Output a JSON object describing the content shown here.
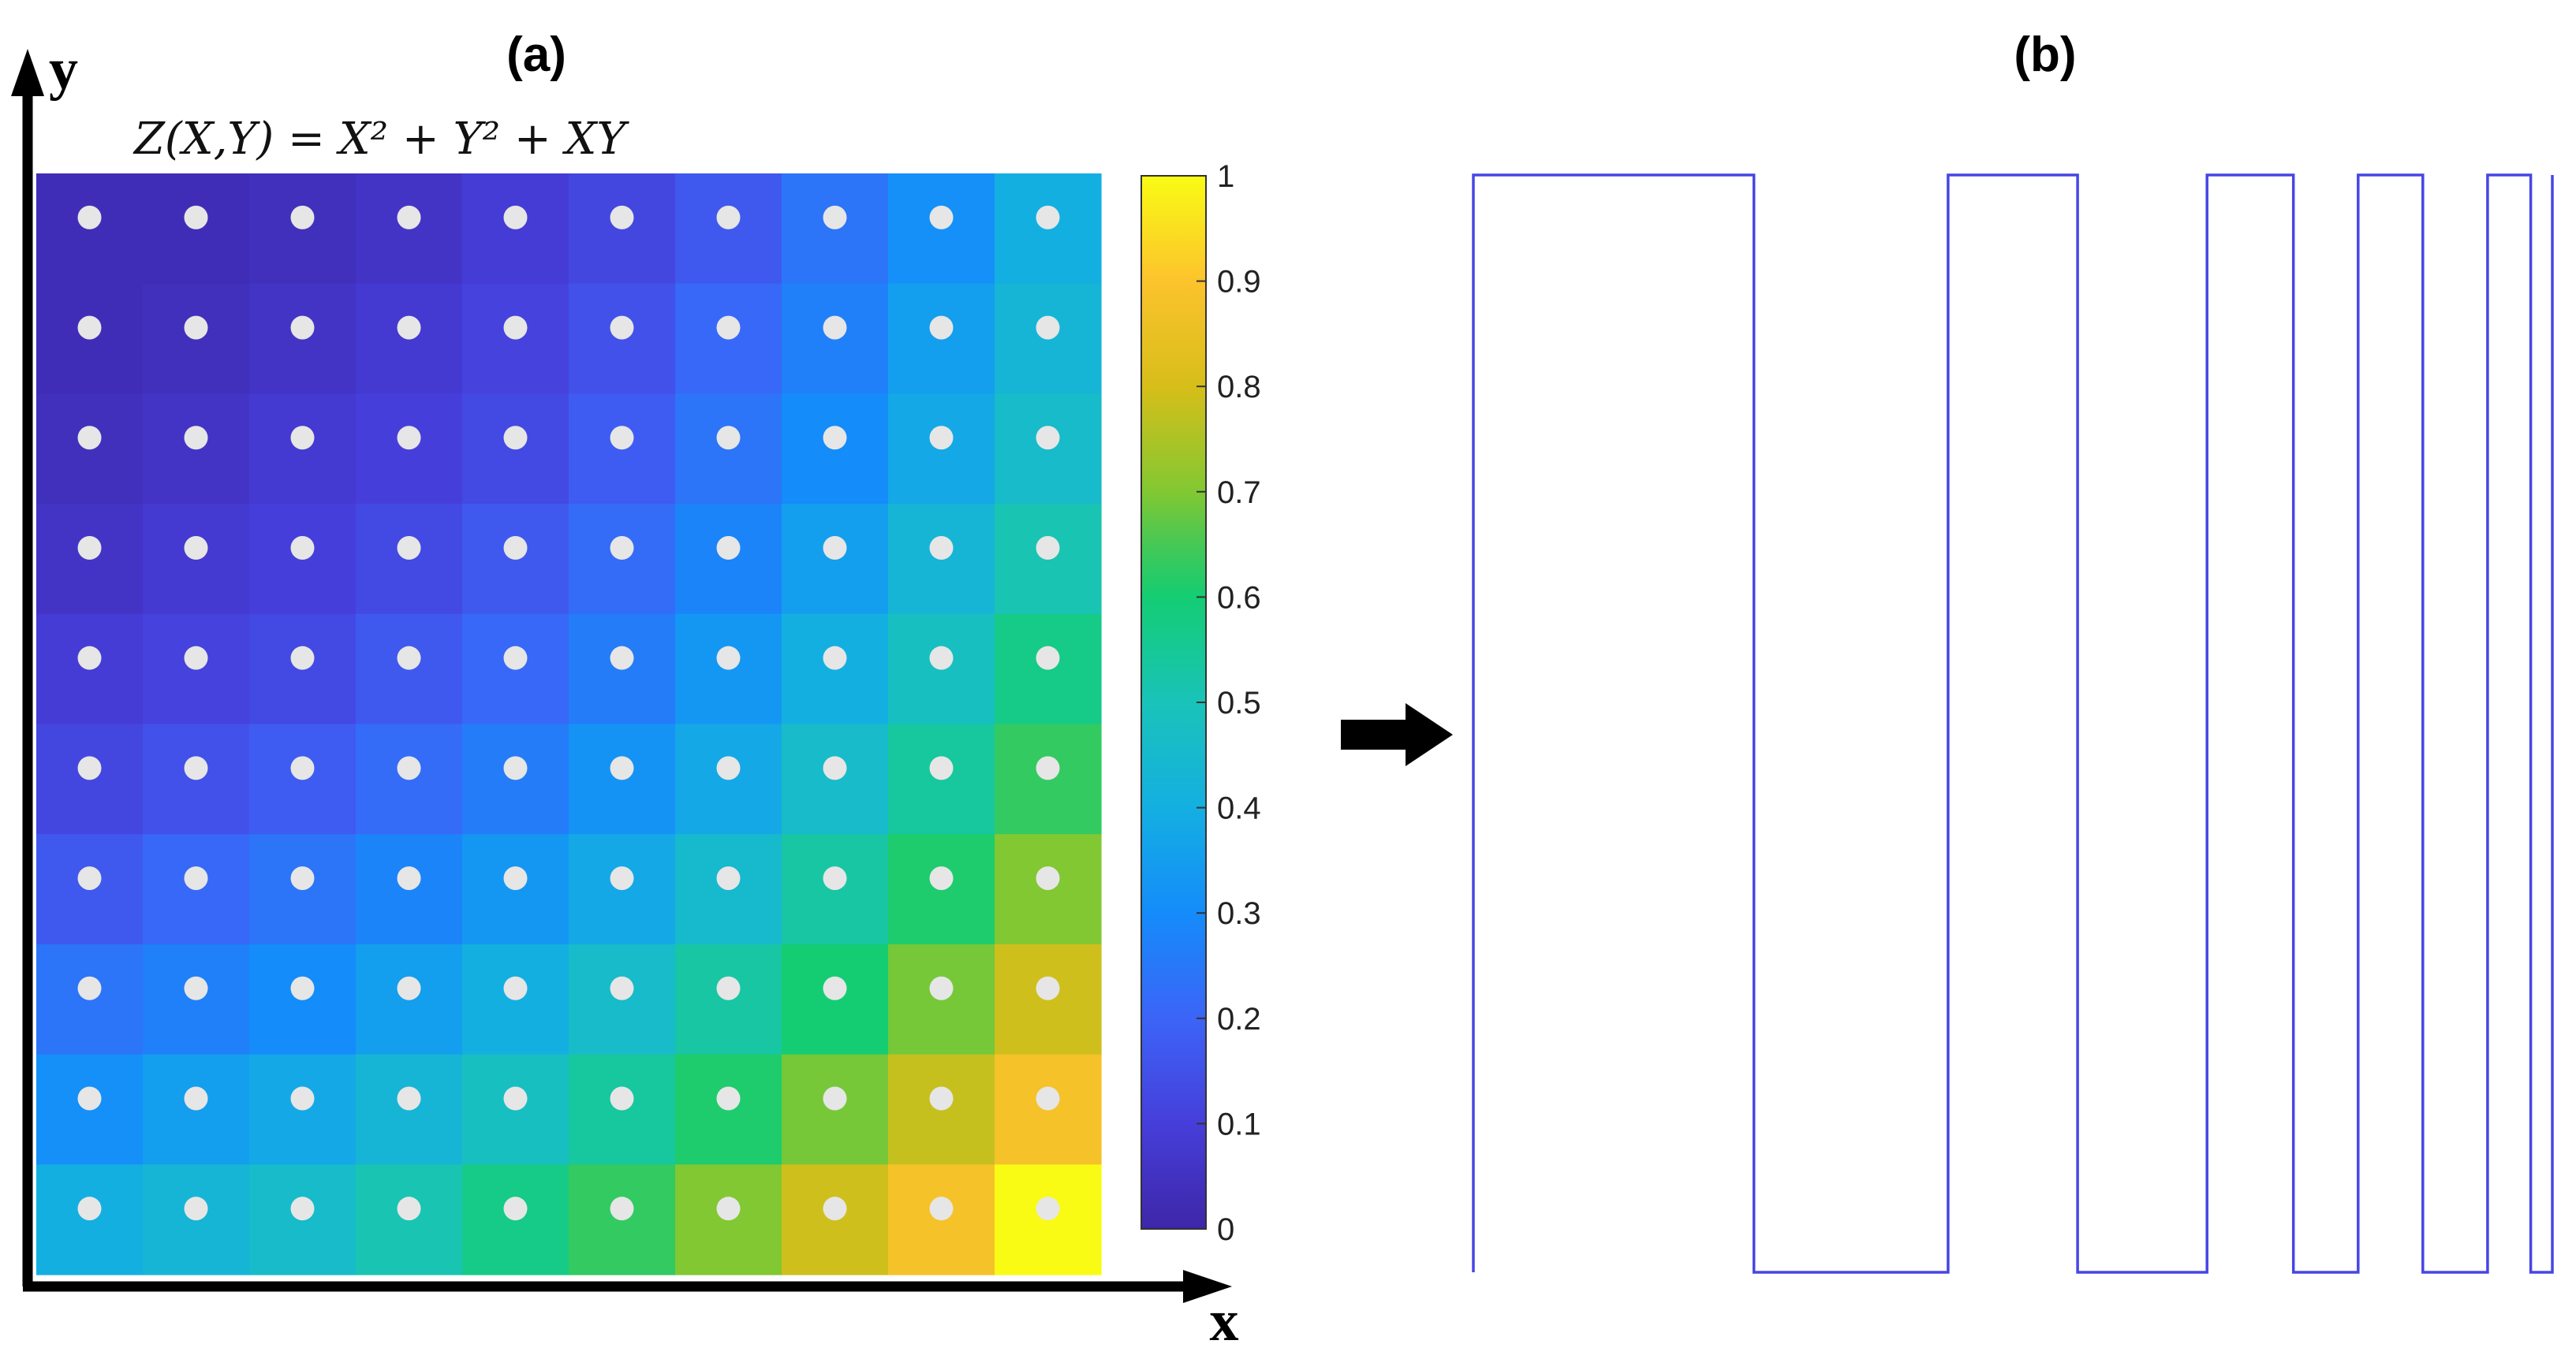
{
  "panels": {
    "a": {
      "label": "(a)"
    },
    "b": {
      "label": "(b)"
    }
  },
  "axes": {
    "x_label": "x",
    "y_label": "y"
  },
  "formula": "Z(X,Y) = X² + Y² + XY",
  "colorbar": {
    "ticks": [
      "0",
      "0.1",
      "0.2",
      "0.3",
      "0.4",
      "0.5",
      "0.6",
      "0.7",
      "0.8",
      "0.9",
      "1"
    ],
    "colormap": "parula",
    "range": [
      0,
      1
    ]
  },
  "colors": {
    "marker": "#e6e6e6",
    "waveform": "#4646e6",
    "arrow": "#000000"
  },
  "chart_data": [
    {
      "type": "heatmap",
      "panel": "(a)",
      "title": "Z(X,Y) = X² + Y² + XY",
      "xlabel": "x",
      "ylabel": "y",
      "rows": 10,
      "cols": 10,
      "row_order": "top-to-bottom",
      "zlim": [
        0,
        1
      ],
      "z": [
        [
          0.03,
          0.03,
          0.04,
          0.06,
          0.09,
          0.12,
          0.17,
          0.24,
          0.31,
          0.4
        ],
        [
          0.03,
          0.04,
          0.06,
          0.08,
          0.11,
          0.15,
          0.21,
          0.27,
          0.35,
          0.43
        ],
        [
          0.04,
          0.06,
          0.08,
          0.1,
          0.13,
          0.18,
          0.24,
          0.3,
          0.38,
          0.46
        ],
        [
          0.06,
          0.08,
          0.1,
          0.13,
          0.17,
          0.22,
          0.28,
          0.35,
          0.43,
          0.51
        ],
        [
          0.09,
          0.11,
          0.13,
          0.17,
          0.21,
          0.26,
          0.33,
          0.4,
          0.48,
          0.57
        ],
        [
          0.12,
          0.15,
          0.18,
          0.22,
          0.26,
          0.32,
          0.38,
          0.46,
          0.54,
          0.63
        ],
        [
          0.17,
          0.21,
          0.24,
          0.28,
          0.33,
          0.38,
          0.45,
          0.53,
          0.61,
          0.7
        ],
        [
          0.24,
          0.27,
          0.3,
          0.35,
          0.4,
          0.46,
          0.53,
          0.6,
          0.69,
          0.79
        ],
        [
          0.31,
          0.35,
          0.38,
          0.43,
          0.48,
          0.54,
          0.61,
          0.69,
          0.78,
          0.88
        ],
        [
          0.4,
          0.43,
          0.46,
          0.51,
          0.57,
          0.63,
          0.7,
          0.79,
          0.88,
          1.0
        ]
      ]
    },
    {
      "type": "line",
      "panel": "(b)",
      "style": "step",
      "segments": [
        {
          "level": 1,
          "x": [
            0,
            0.26
          ]
        },
        {
          "level": 0,
          "x": [
            0.26,
            0.44
          ]
        },
        {
          "level": 1,
          "x": [
            0.44,
            0.56
          ]
        },
        {
          "level": 0,
          "x": [
            0.56,
            0.68
          ]
        },
        {
          "level": 1,
          "x": [
            0.68,
            0.76
          ]
        },
        {
          "level": 0,
          "x": [
            0.76,
            0.82
          ]
        },
        {
          "level": 1,
          "x": [
            0.82,
            0.88
          ]
        },
        {
          "level": 0,
          "x": [
            0.88,
            0.94
          ]
        },
        {
          "level": 1,
          "x": [
            0.94,
            0.98
          ]
        },
        {
          "level": 0,
          "x": [
            0.98,
            1.0
          ]
        }
      ]
    }
  ]
}
